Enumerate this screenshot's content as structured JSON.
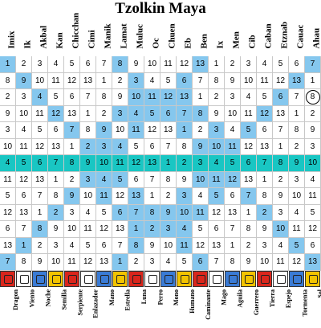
{
  "title": "Tzolkin Maya",
  "day_signs": [
    "Imix",
    "Ik",
    "Akbal",
    "Kan",
    "Chicchan",
    "Cimi",
    "Manik",
    "Lamat",
    "Muluc",
    "Oc",
    "Chuen",
    "Eb",
    "Ben",
    "Ix",
    "Men",
    "Cib",
    "Caban",
    "Etznab",
    "Cauac",
    "Ahau"
  ],
  "translations": [
    "Dragon",
    "Viento",
    "Noche",
    "Semilla",
    "Serpiente",
    "Enlazador",
    "Mano",
    "Estrella",
    "Luna",
    "Perro",
    "Mono",
    "Humano",
    "Caminante",
    "Mago",
    "Aguila",
    "Guerrero",
    "Tierra",
    "Espejo",
    "Tormenta",
    "Sol"
  ],
  "glyph_colors": [
    "#d9261c",
    "#ffffff",
    "#3a7bd5",
    "#f2c300",
    "#d9261c",
    "#ffffff",
    "#3a7bd5",
    "#f2c300",
    "#d9261c",
    "#ffffff",
    "#3a7bd5",
    "#f2c300",
    "#d9261c",
    "#ffffff",
    "#3a7bd5",
    "#f2c300",
    "#d9261c",
    "#ffffff",
    "#3a7bd5",
    "#f2c300"
  ],
  "highlight_colors": {
    "portal": "#85c7ee",
    "center_row": "#19c6c3",
    "grid_line": "#c8c8c8"
  },
  "highlighted_day": {
    "row": 2,
    "col": 19
  },
  "grid": [
    [
      1,
      2,
      3,
      4,
      5,
      6,
      7,
      8,
      9,
      10,
      11,
      12,
      13,
      1,
      2,
      3,
      4,
      5,
      6,
      7
    ],
    [
      8,
      9,
      10,
      11,
      12,
      13,
      1,
      2,
      3,
      4,
      5,
      6,
      7,
      8,
      9,
      10,
      11,
      12,
      13,
      1
    ],
    [
      2,
      3,
      4,
      5,
      6,
      7,
      8,
      9,
      10,
      11,
      12,
      13,
      1,
      2,
      3,
      4,
      5,
      6,
      7,
      8
    ],
    [
      9,
      10,
      11,
      12,
      13,
      1,
      2,
      3,
      4,
      5,
      6,
      7,
      8,
      9,
      10,
      11,
      12,
      13,
      1,
      2
    ],
    [
      3,
      4,
      5,
      6,
      7,
      8,
      9,
      10,
      11,
      12,
      13,
      1,
      2,
      3,
      4,
      5,
      6,
      7,
      8,
      9
    ],
    [
      10,
      11,
      12,
      13,
      1,
      2,
      3,
      4,
      5,
      6,
      7,
      8,
      9,
      10,
      11,
      12,
      13,
      1,
      2,
      3
    ],
    [
      4,
      5,
      6,
      7,
      8,
      9,
      10,
      11,
      12,
      13,
      1,
      2,
      3,
      4,
      5,
      6,
      7,
      8,
      9,
      10
    ],
    [
      11,
      12,
      13,
      1,
      2,
      3,
      4,
      5,
      6,
      7,
      8,
      9,
      10,
      11,
      12,
      13,
      1,
      2,
      3,
      4
    ],
    [
      5,
      6,
      7,
      8,
      9,
      10,
      11,
      12,
      13,
      1,
      2,
      3,
      4,
      5,
      6,
      7,
      8,
      9,
      10,
      11
    ],
    [
      12,
      13,
      1,
      2,
      3,
      4,
      5,
      6,
      7,
      8,
      9,
      10,
      11,
      12,
      13,
      1,
      2,
      3,
      4,
      5
    ],
    [
      6,
      7,
      8,
      9,
      10,
      11,
      12,
      13,
      1,
      2,
      3,
      4,
      5,
      6,
      7,
      8,
      9,
      10,
      11,
      12
    ],
    [
      13,
      1,
      2,
      3,
      4,
      5,
      6,
      7,
      8,
      9,
      10,
      11,
      12,
      13,
      1,
      2,
      3,
      4,
      5,
      6
    ],
    [
      7,
      8,
      9,
      10,
      11,
      12,
      13,
      1,
      2,
      3,
      4,
      5,
      6,
      7,
      8,
      9,
      10,
      11,
      12,
      13
    ]
  ],
  "blue_cells": [
    [
      0,
      0
    ],
    [
      1,
      1
    ],
    [
      2,
      2
    ],
    [
      3,
      3
    ],
    [
      4,
      4
    ],
    [
      5,
      5
    ],
    [
      7,
      7
    ],
    [
      8,
      8
    ],
    [
      9,
      9
    ],
    [
      10,
      10
    ],
    [
      11,
      11
    ],
    [
      12,
      12
    ],
    [
      12,
      0
    ],
    [
      11,
      1
    ],
    [
      10,
      2
    ],
    [
      9,
      3
    ],
    [
      8,
      4
    ],
    [
      7,
      5
    ],
    [
      5,
      7
    ],
    [
      4,
      8
    ],
    [
      3,
      9
    ],
    [
      2,
      10
    ],
    [
      1,
      11
    ],
    [
      0,
      12
    ],
    [
      0,
      19
    ],
    [
      1,
      18
    ],
    [
      2,
      17
    ],
    [
      3,
      16
    ],
    [
      4,
      15
    ],
    [
      5,
      14
    ],
    [
      7,
      12
    ],
    [
      8,
      11
    ],
    [
      9,
      10
    ],
    [
      10,
      9
    ],
    [
      11,
      8
    ],
    [
      12,
      7
    ],
    [
      12,
      19
    ],
    [
      11,
      18
    ],
    [
      10,
      17
    ],
    [
      9,
      16
    ],
    [
      8,
      15
    ],
    [
      7,
      14
    ],
    [
      5,
      12
    ],
    [
      4,
      11
    ],
    [
      3,
      10
    ],
    [
      2,
      9
    ],
    [
      1,
      8
    ],
    [
      0,
      7
    ],
    [
      2,
      11
    ],
    [
      3,
      11
    ],
    [
      2,
      8
    ],
    [
      3,
      8
    ],
    [
      9,
      8
    ],
    [
      10,
      8
    ],
    [
      9,
      11
    ],
    [
      10,
      11
    ],
    [
      5,
      6
    ],
    [
      7,
      6
    ],
    [
      5,
      13
    ],
    [
      7,
      13
    ],
    [
      4,
      6
    ],
    [
      8,
      6
    ],
    [
      4,
      13
    ],
    [
      8,
      13
    ],
    [
      3,
      12
    ],
    [
      9,
      12
    ],
    [
      3,
      7
    ],
    [
      9,
      7
    ]
  ]
}
